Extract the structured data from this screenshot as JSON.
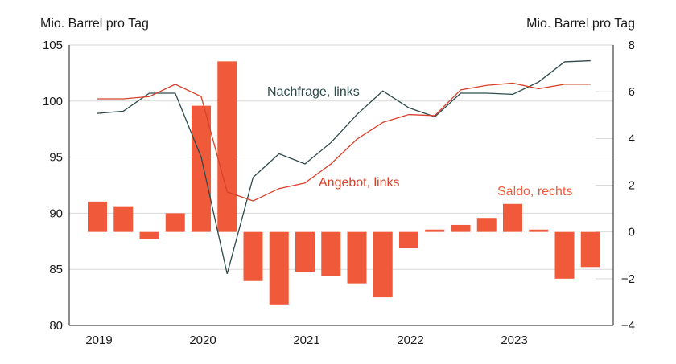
{
  "chart_data": {
    "type": "bar+line",
    "left_axis_label": "Mio. Barrel pro Tag",
    "right_axis_label": "Mio. Barrel pro Tag",
    "left_ylim": [
      80,
      105
    ],
    "left_ticks": [
      "80",
      "85",
      "90",
      "95",
      "100",
      "105"
    ],
    "right_ylim": [
      -4,
      8
    ],
    "right_ticks": [
      "−4",
      "−2",
      "0",
      "2",
      "4",
      "6",
      "8"
    ],
    "x_ticks": [
      "2019",
      "2020",
      "2021",
      "2022",
      "2023"
    ],
    "grid": true,
    "quarters": [
      "2019 Q1",
      "2019 Q2",
      "2019 Q3",
      "2019 Q4",
      "2020 Q1",
      "2020 Q2",
      "2020 Q3",
      "2020 Q4",
      "2021 Q1",
      "2021 Q2",
      "2021 Q3",
      "2021 Q4",
      "2022 Q1",
      "2022 Q2",
      "2022 Q3",
      "2022 Q4",
      "2023 Q1",
      "2023 Q2",
      "2023 Q3",
      "2023 Q4"
    ],
    "series": [
      {
        "name": "Saldo, rechts",
        "type": "bar",
        "axis": "right",
        "color": "#f05a3a",
        "values": [
          1.3,
          1.1,
          -0.3,
          0.8,
          5.4,
          7.3,
          -2.1,
          -3.1,
          -1.7,
          -1.9,
          -2.2,
          -2.8,
          -0.7,
          0.1,
          0.3,
          0.6,
          1.2,
          0.1,
          -2.0,
          -1.5
        ]
      },
      {
        "name": "Nachfrage, links",
        "type": "line",
        "axis": "left",
        "color": "#2e4a4a",
        "values": [
          98.9,
          99.1,
          100.7,
          100.7,
          95.0,
          84.6,
          93.2,
          95.3,
          94.4,
          96.3,
          98.8,
          100.9,
          99.4,
          98.6,
          100.7,
          100.7,
          100.6,
          101.7,
          103.5,
          103.6
        ]
      },
      {
        "name": "Angebot, links",
        "type": "line",
        "axis": "left",
        "color": "#d7402a",
        "values": [
          100.2,
          100.2,
          100.4,
          101.5,
          100.4,
          91.9,
          91.1,
          92.2,
          92.7,
          94.4,
          96.6,
          98.1,
          98.8,
          98.7,
          101.0,
          101.4,
          101.6,
          101.1,
          101.5,
          101.5
        ]
      }
    ]
  }
}
